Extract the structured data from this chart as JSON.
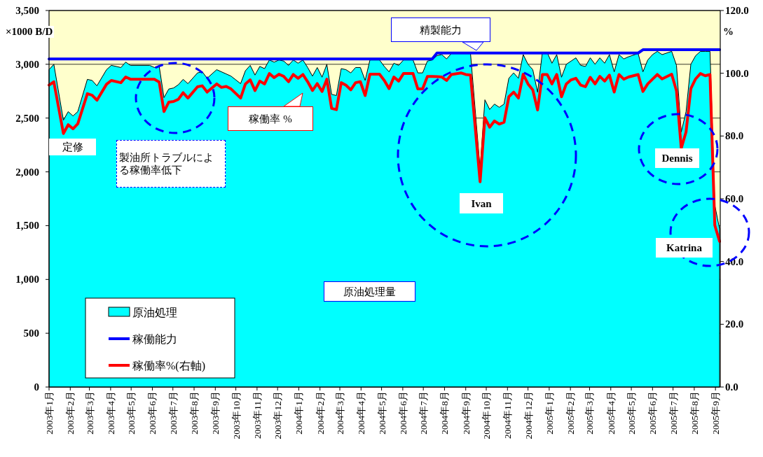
{
  "chart_data": {
    "type": "area",
    "ylabel": "×1000 B/D",
    "y2label": "%",
    "x": [
      "2003-01-01",
      "2003-01-08",
      "2003-01-22",
      "2003-01-29",
      "2003-02-05",
      "2003-02-12",
      "2003-02-26",
      "2003-03-05",
      "2003-03-12",
      "2003-03-26",
      "2003-04-02",
      "2003-04-16",
      "2003-04-23",
      "2003-04-30",
      "2003-05-28",
      "2003-06-04",
      "2003-06-11",
      "2003-06-18",
      "2003-06-25",
      "2003-07-02",
      "2003-07-09",
      "2003-07-16",
      "2003-07-23",
      "2003-08-06",
      "2003-08-13",
      "2003-08-20",
      "2003-09-03",
      "2003-09-10",
      "2003-09-17",
      "2003-09-24",
      "2003-10-08",
      "2003-10-15",
      "2003-10-22",
      "2003-10-29",
      "2003-11-05",
      "2003-11-12",
      "2003-11-19",
      "2003-11-26",
      "2003-12-03",
      "2003-12-10",
      "2003-12-17",
      "2003-12-24",
      "2003-12-31",
      "2004-01-07",
      "2004-01-14",
      "2004-01-21",
      "2004-01-28",
      "2004-02-04",
      "2004-02-11",
      "2004-02-18",
      "2004-02-25",
      "2004-03-03",
      "2004-03-10",
      "2004-03-17",
      "2004-03-24",
      "2004-03-31",
      "2004-04-07",
      "2004-04-14",
      "2004-04-28",
      "2004-05-05",
      "2004-05-12",
      "2004-05-19",
      "2004-05-26",
      "2004-06-02",
      "2004-06-16",
      "2004-06-23",
      "2004-06-30",
      "2004-07-07",
      "2004-07-14",
      "2004-07-21",
      "2004-07-28",
      "2004-08-04",
      "2004-08-11",
      "2004-08-25",
      "2004-09-01",
      "2004-09-08",
      "2004-09-22",
      "2004-09-29",
      "2004-10-06",
      "2004-10-13",
      "2004-10-20",
      "2004-10-27",
      "2004-11-03",
      "2004-11-10",
      "2004-11-17",
      "2004-11-24",
      "2004-12-01",
      "2004-12-08",
      "2004-12-15",
      "2004-12-22",
      "2004-12-29",
      "2005-01-05",
      "2005-01-12",
      "2005-01-19",
      "2005-01-26",
      "2005-02-02",
      "2005-02-09",
      "2005-02-16",
      "2005-02-23",
      "2005-03-02",
      "2005-03-09",
      "2005-03-16",
      "2005-03-23",
      "2005-03-30",
      "2005-04-06",
      "2005-04-13",
      "2005-04-20",
      "2005-04-27",
      "2005-05-11",
      "2005-05-18",
      "2005-05-25",
      "2005-06-01",
      "2005-06-08",
      "2005-06-15",
      "2005-06-29",
      "2005-07-06",
      "2005-07-13",
      "2005-07-20",
      "2005-07-27",
      "2005-08-03",
      "2005-08-10",
      "2005-08-17",
      "2005-08-24",
      "2005-08-31",
      "2005-09-07"
    ],
    "series": [
      {
        "name": "原油処理",
        "type": "area",
        "color": "#00ffff",
        "values": [
          2950,
          3000,
          2480,
          2560,
          2520,
          2560,
          2860,
          2850,
          2800,
          2950,
          2990,
          2970,
          3020,
          2990,
          2990,
          2970,
          2980,
          2690,
          2770,
          2780,
          2810,
          2860,
          2820,
          2920,
          2930,
          2870,
          2950,
          2930,
          2910,
          2890,
          2820,
          2940,
          2990,
          2900,
          2980,
          2960,
          3040,
          3020,
          3040,
          3030,
          2990,
          3040,
          3010,
          3040,
          2970,
          2890,
          2970,
          2880,
          3000,
          2720,
          2710,
          2960,
          2950,
          2920,
          2970,
          2970,
          2850,
          3040,
          3040,
          2980,
          2930,
          3010,
          2990,
          3040,
          3040,
          2920,
          2920,
          3030,
          3040,
          3080,
          3090,
          3050,
          3100,
          3100,
          3100,
          3100,
          2030,
          2670,
          2580,
          2630,
          2600,
          2630,
          2870,
          2920,
          2870,
          3090,
          3000,
          2950,
          2740,
          3110,
          3110,
          3010,
          3090,
          2880,
          3000,
          3030,
          3060,
          2990,
          2980,
          3060,
          3000,
          3060,
          3010,
          3090,
          2930,
          3090,
          3050,
          3070,
          3100,
          2930,
          3040,
          3090,
          3120,
          3090,
          3120,
          2990,
          2370,
          2560,
          3000,
          3080,
          3120,
          3120,
          3120,
          1690,
          1470
        ]
      },
      {
        "name": "稼働能力",
        "type": "line",
        "color": "#0000ff",
        "x": [
          "2003-01-01",
          "2004-07-14",
          "2004-07-21",
          "2005-05-11",
          "2005-05-18",
          "2005-09-07"
        ],
        "values": [
          3050,
          3050,
          3105,
          3105,
          3135,
          3135
        ]
      },
      {
        "name": "稼働率%(右軸)",
        "type": "line",
        "color": "#ff0000",
        "axis": "y2",
        "values": [
          96.2,
          97.3,
          80.8,
          83.6,
          82.3,
          83.9,
          93.5,
          93.0,
          91.4,
          96.5,
          97.7,
          97.0,
          98.8,
          98.1,
          98.1,
          98.1,
          97.2,
          87.8,
          90.8,
          91.0,
          91.7,
          93.8,
          92.1,
          95.7,
          96.0,
          94.0,
          96.6,
          95.5,
          95.8,
          95.0,
          92.1,
          96.6,
          97.9,
          94.5,
          97.5,
          96.6,
          99.9,
          98.6,
          99.7,
          99.0,
          97.3,
          99.6,
          98.4,
          99.6,
          97.3,
          94.5,
          96.7,
          94.2,
          98.1,
          88.8,
          88.4,
          97.0,
          96.2,
          94.7,
          97.0,
          97.3,
          92.9,
          99.7,
          99.7,
          97.7,
          95.1,
          98.8,
          97.5,
          99.9,
          99.9,
          95.0,
          95.0,
          99.0,
          99.0,
          98.9,
          98.8,
          97.7,
          99.6,
          100.1,
          99.6,
          99.4,
          65.4,
          85.8,
          82.8,
          84.8,
          83.8,
          84.4,
          92.5,
          94.0,
          92.1,
          99.7,
          96.6,
          94.7,
          88.3,
          99.6,
          99.6,
          96.6,
          99.6,
          92.5,
          96.6,
          97.9,
          98.4,
          96.2,
          95.7,
          98.7,
          96.6,
          99.0,
          97.5,
          99.4,
          94.0,
          99.6,
          98.1,
          98.8,
          99.6,
          94.2,
          96.6,
          98.1,
          99.6,
          98.2,
          99.7,
          94.4,
          76.1,
          81.3,
          95.1,
          98.2,
          99.9,
          99.2,
          99.6,
          51.6,
          46.4
        ]
      }
    ],
    "xlim": [
      "2003-01-01",
      "2005-09-08"
    ],
    "xticks": [
      {
        "value": "2003-01-01",
        "label": "2003年1月"
      },
      {
        "value": "2003-02-01",
        "label": "2003年2月"
      },
      {
        "value": "2003-03-01",
        "label": "2003年3月"
      },
      {
        "value": "2003-04-01",
        "label": "2003年4月"
      },
      {
        "value": "2003-05-01",
        "label": "2003年5月"
      },
      {
        "value": "2003-06-01",
        "label": "2003年6月"
      },
      {
        "value": "2003-07-01",
        "label": "2003年7月"
      },
      {
        "value": "2003-08-01",
        "label": "2003年8月"
      },
      {
        "value": "2003-09-01",
        "label": "2003年9月"
      },
      {
        "value": "2003-10-01",
        "label": "2003年10月"
      },
      {
        "value": "2003-11-01",
        "label": "2003年11月"
      },
      {
        "value": "2003-12-01",
        "label": "2003年12月"
      },
      {
        "value": "2004-01-01",
        "label": "2004年1月"
      },
      {
        "value": "2004-02-01",
        "label": "2004年2月"
      },
      {
        "value": "2004-03-01",
        "label": "2004年3月"
      },
      {
        "value": "2004-04-01",
        "label": "2004年4月"
      },
      {
        "value": "2004-05-01",
        "label": "2004年5月"
      },
      {
        "value": "2004-06-01",
        "label": "2004年6月"
      },
      {
        "value": "2004-07-01",
        "label": "2004年7月"
      },
      {
        "value": "2004-08-01",
        "label": "2004年8月"
      },
      {
        "value": "2004-09-01",
        "label": "2004年9月"
      },
      {
        "value": "2004-10-01",
        "label": "2004年10月"
      },
      {
        "value": "2004-11-01",
        "label": "2004年11月"
      },
      {
        "value": "2004-12-01",
        "label": "2004年12月"
      },
      {
        "value": "2005-01-01",
        "label": "2005年1月"
      },
      {
        "value": "2005-02-01",
        "label": "2005年2月"
      },
      {
        "value": "2005-03-01",
        "label": "2005年3月"
      },
      {
        "value": "2005-04-01",
        "label": "2005年4月"
      },
      {
        "value": "2005-05-01",
        "label": "2005年5月"
      },
      {
        "value": "2005-06-01",
        "label": "2005年6月"
      },
      {
        "value": "2005-07-01",
        "label": "2005年7月"
      },
      {
        "value": "2005-08-01",
        "label": "2005年8月"
      },
      {
        "value": "2005-09-01",
        "label": "2005年9月"
      }
    ],
    "ylim": [
      0,
      3500
    ],
    "yticks": [
      {
        "value": 0,
        "label": "0"
      },
      {
        "value": 500,
        "label": "500"
      },
      {
        "value": 1000,
        "label": "1,000"
      },
      {
        "value": 1500,
        "label": "1,500"
      },
      {
        "value": 2000,
        "label": "2,000"
      },
      {
        "value": 2500,
        "label": "2,500"
      },
      {
        "value": 3000,
        "label": "3,000"
      },
      {
        "value": 3500,
        "label": "3,500"
      }
    ],
    "y2lim": [
      0,
      120
    ],
    "y2ticks": [
      {
        "value": 0,
        "label": "0.0"
      },
      {
        "value": 20,
        "label": "20.0"
      },
      {
        "value": 40,
        "label": "40.0"
      },
      {
        "value": 60,
        "label": "60.0"
      },
      {
        "value": 80,
        "label": "80.0"
      },
      {
        "value": 100,
        "label": "100.0"
      },
      {
        "value": 120,
        "label": "120.0"
      }
    ],
    "grid": "y",
    "legend": "bottom left",
    "annotations": [
      "精製能力",
      "稼働率 %",
      "定修",
      "製油所トラブルによる稼働率低下",
      "Ivan",
      "Dennis",
      "Katrina",
      "原油処理量"
    ]
  }
}
